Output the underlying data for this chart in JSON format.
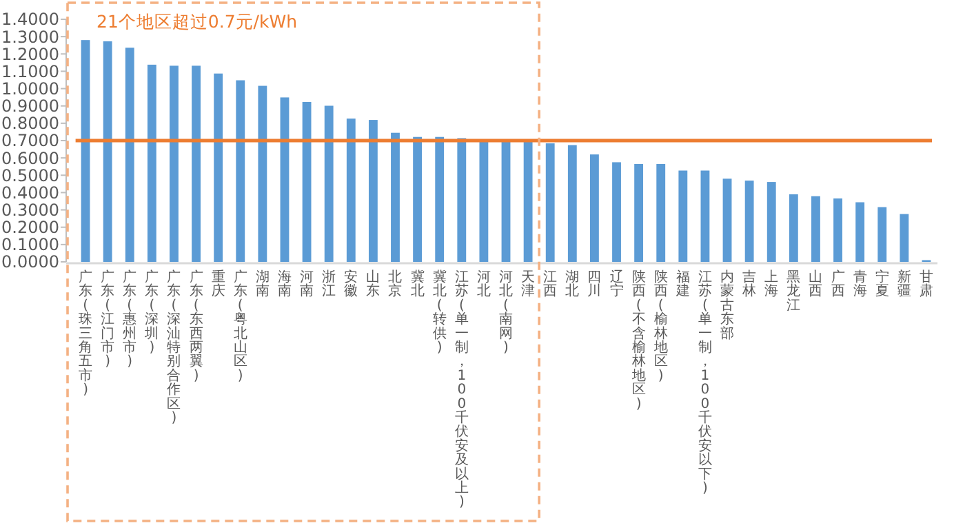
{
  "chart_data": {
    "type": "bar",
    "categories": [
      "广东(珠三角五市)",
      "广东(江门市)",
      "广东(惠州市)",
      "广东(深圳)",
      "广东(深汕特别合作区)",
      "广东(东西两翼)",
      "重庆",
      "广东(粤北山区)",
      "湖南",
      "海南",
      "河南",
      "浙江",
      "安徽",
      "山东",
      "北京",
      "冀北",
      "冀北(转供)",
      "江苏(单一制，100千伏安及以上)",
      "河北",
      "河北(南网)",
      "天津",
      "江西",
      "湖北",
      "四川",
      "辽宁",
      "陕西(不含榆林地区)",
      "陕西(榆林地区)",
      "福建",
      "江苏(单一制，100千伏安以下)",
      "内蒙古东部",
      "吉林",
      "上海",
      "黑龙江",
      "山西",
      "广西",
      "青海",
      "宁夏",
      "新疆",
      "甘肃"
    ],
    "values": [
      1.28,
      1.273,
      1.236,
      1.138,
      1.132,
      1.132,
      1.087,
      1.048,
      1.016,
      0.949,
      0.923,
      0.901,
      0.827,
      0.819,
      0.745,
      0.721,
      0.721,
      0.714,
      0.705,
      0.703,
      0.702,
      0.684,
      0.674,
      0.62,
      0.575,
      0.565,
      0.565,
      0.527,
      0.527,
      0.48,
      0.469,
      0.461,
      0.39,
      0.379,
      0.366,
      0.344,
      0.316,
      0.276,
      0.01
    ],
    "color": "#5b9bd5",
    "ylim": [
      0,
      1.4
    ],
    "yticks": [
      {
        "value": 0,
        "label": "0.0000"
      },
      {
        "value": 0.1,
        "label": "0.1000"
      },
      {
        "value": 0.2,
        "label": "0.2000"
      },
      {
        "value": 0.3,
        "label": "0.3000"
      },
      {
        "value": 0.4,
        "label": "0.4000"
      },
      {
        "value": 0.5,
        "label": "0.5000"
      },
      {
        "value": 0.6,
        "label": "0.6000"
      },
      {
        "value": 0.7,
        "label": "0.7000"
      },
      {
        "value": 0.8,
        "label": "0.8000"
      },
      {
        "value": 0.9,
        "label": "0.9000"
      },
      {
        "value": 1.0,
        "label": "1.0000"
      },
      {
        "value": 1.1,
        "label": "1.1000"
      },
      {
        "value": 1.2,
        "label": "1.2000"
      },
      {
        "value": 1.3,
        "label": "1.3000"
      },
      {
        "value": 1.4,
        "label": "1.4000"
      }
    ],
    "ref_lines": [
      {
        "axis": "y",
        "value": 0.7,
        "color": "#ed7d31"
      }
    ],
    "annotations": [
      "21个地区超过0.7元/kWh"
    ]
  }
}
